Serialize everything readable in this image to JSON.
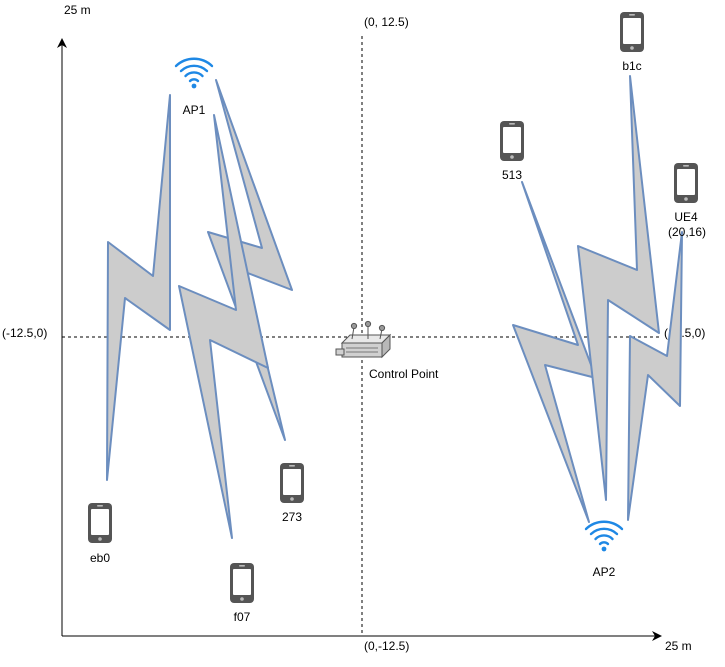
{
  "axes": {
    "y_axis_label": "25 m",
    "x_axis_label": "25 m",
    "top_label": "(0, 12.5)",
    "bottom_label": "(0,-12.5)",
    "left_label": "(-12.5,0)",
    "right_label": "(12.5,0)"
  },
  "control_point": {
    "label": "Control Point"
  },
  "access_points": [
    {
      "id": "AP1",
      "label": "AP1"
    },
    {
      "id": "AP2",
      "label": "AP2"
    }
  ],
  "devices": [
    {
      "id": "b1c",
      "label": "b1c"
    },
    {
      "id": "513",
      "label": "513"
    },
    {
      "id": "UE4",
      "label": "UE4",
      "coords": "(20,16)"
    },
    {
      "id": "eb0",
      "label": "eb0"
    },
    {
      "id": "273",
      "label": "273"
    },
    {
      "id": "f07",
      "label": "f07"
    }
  ],
  "links": [
    {
      "from": "AP1",
      "to": "eb0"
    },
    {
      "from": "AP1",
      "to": "273"
    },
    {
      "from": "AP1",
      "to": "f07"
    },
    {
      "from": "AP2",
      "to": "513"
    },
    {
      "from": "AP2",
      "to": "b1c"
    },
    {
      "from": "AP2",
      "to": "UE4"
    }
  ],
  "colors": {
    "wifi_icon": "#1E88E5",
    "bolt_fill": "#CCCCCC",
    "bolt_stroke": "#6C8EBF",
    "phone": "#555555",
    "router_fill": "#D0D0D0",
    "router_stroke": "#555555"
  }
}
